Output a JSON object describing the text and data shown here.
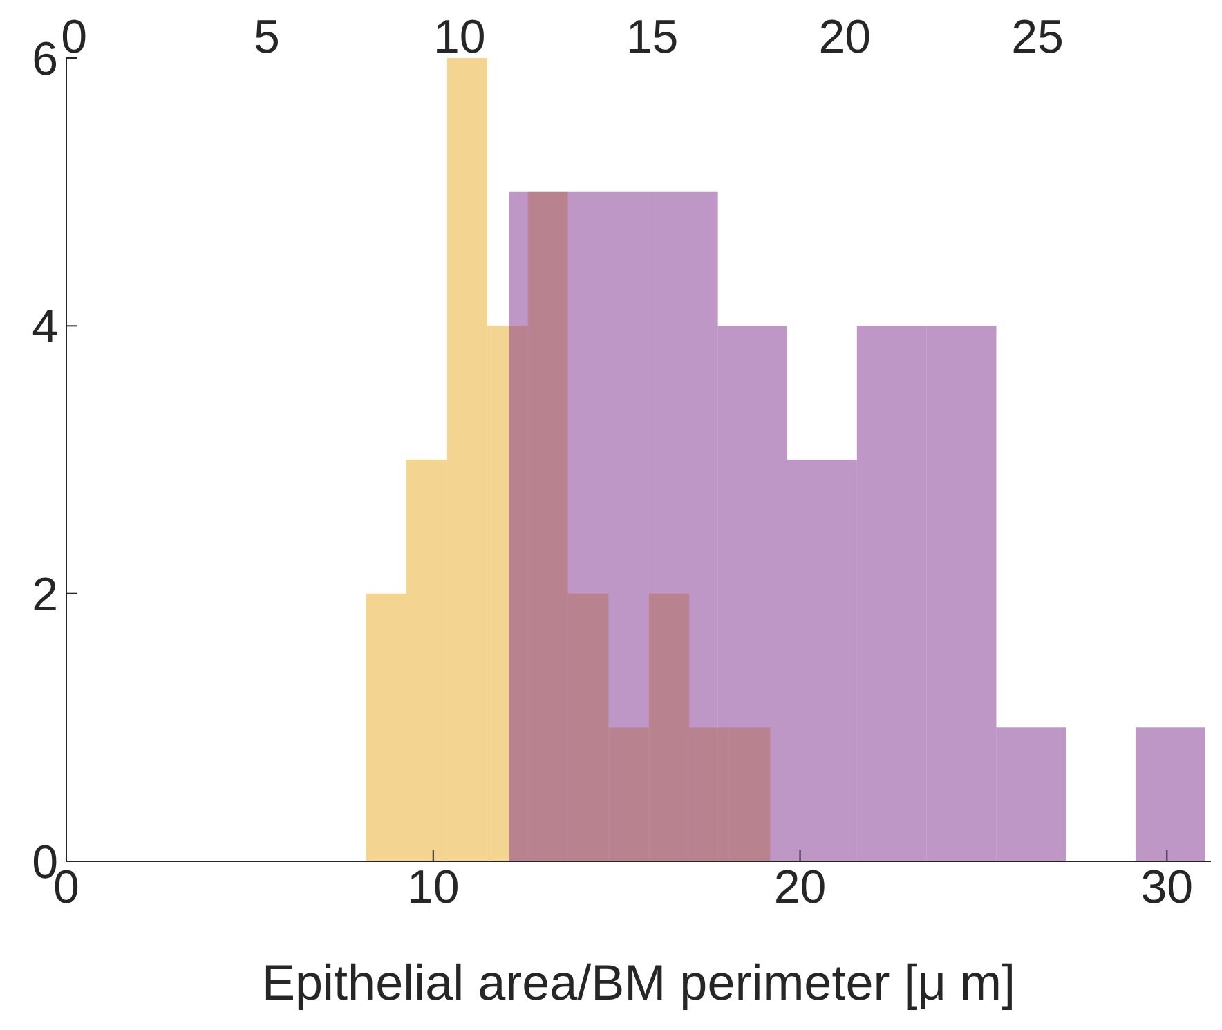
{
  "chart_data": {
    "type": "histogram",
    "xlabel": "Epithelial area/BM perimeter [μ m]",
    "xlim": [
      0,
      31.2
    ],
    "xticks": [
      0,
      10,
      20,
      30
    ],
    "x2lim": [
      -0.2,
      29.5
    ],
    "x2ticks": [
      0,
      5,
      10,
      15,
      20,
      25
    ],
    "ylim": [
      0,
      6
    ],
    "yticks": [
      0,
      2,
      4,
      6
    ],
    "grid": false,
    "bins": [
      8.17,
      9.27,
      10.38,
      11.47,
      12.58,
      13.67,
      14.78,
      15.88,
      16.98,
      18.08,
      19.19
    ],
    "series": [
      {
        "color": "#f3d591",
        "values": [
          2,
          3,
          6,
          4,
          5,
          2,
          1,
          2,
          1,
          1
        ]
      },
      {
        "color": "#bf97c6",
        "bins": [
          12.06,
          13.96,
          15.86,
          17.76,
          19.65,
          21.55,
          23.45,
          25.35,
          27.25,
          29.15,
          31.05
        ],
        "values": [
          5,
          5,
          5,
          4,
          3,
          4,
          4,
          1,
          0,
          1
        ]
      }
    ]
  }
}
